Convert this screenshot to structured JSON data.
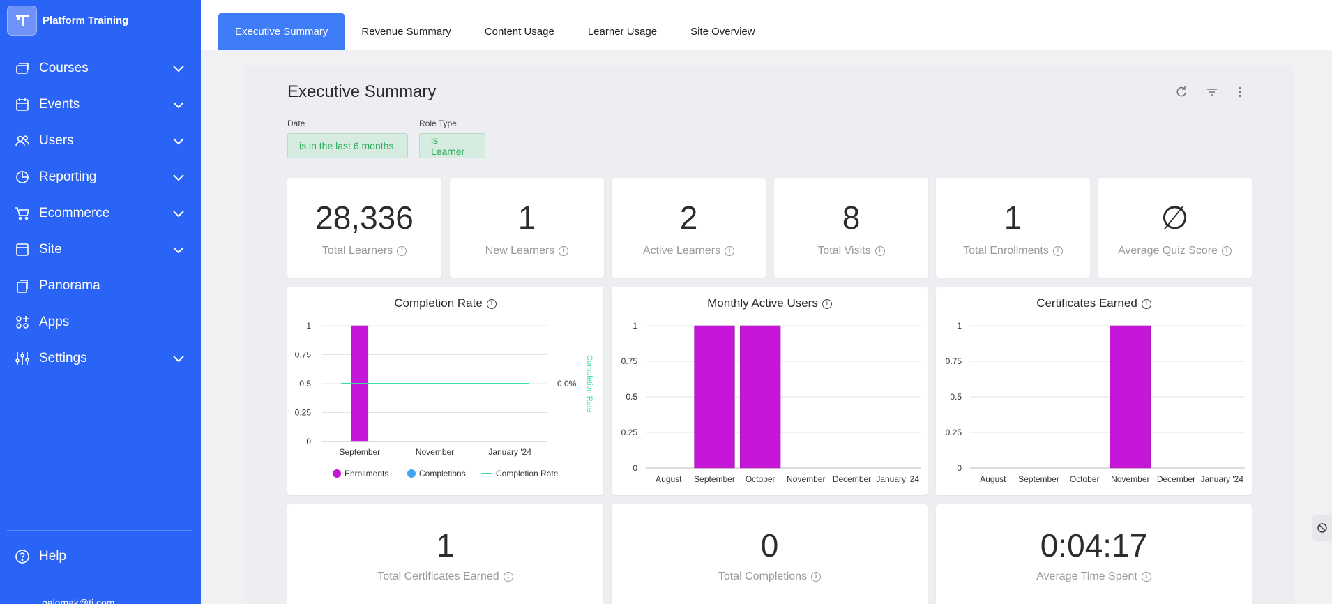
{
  "brand": {
    "name": "Platform Training"
  },
  "nav": [
    {
      "label": "Courses",
      "icon": "courses-icon",
      "chevron": true
    },
    {
      "label": "Events",
      "icon": "calendar-icon",
      "chevron": true
    },
    {
      "label": "Users",
      "icon": "users-icon",
      "chevron": true
    },
    {
      "label": "Reporting",
      "icon": "pie-chart-icon",
      "chevron": true
    },
    {
      "label": "Ecommerce",
      "icon": "cart-icon",
      "chevron": true
    },
    {
      "label": "Site",
      "icon": "browser-icon",
      "chevron": true
    },
    {
      "label": "Panorama",
      "icon": "panorama-icon",
      "chevron": false
    },
    {
      "label": "Apps",
      "icon": "apps-icon",
      "chevron": false
    },
    {
      "label": "Settings",
      "icon": "sliders-icon",
      "chevron": true
    }
  ],
  "help": {
    "label": "Help"
  },
  "user": {
    "email": "palomak@ti.com"
  },
  "tabs": [
    "Executive Summary",
    "Revenue Summary",
    "Content Usage",
    "Learner Usage",
    "Site Overview"
  ],
  "dashboard": {
    "title": "Executive Summary"
  },
  "filters": [
    {
      "label": "Date",
      "value": "is in the last 6 months"
    },
    {
      "label": "Role Type",
      "value": "is Learner"
    }
  ],
  "kpis": [
    {
      "value": "28,336",
      "label": "Total Learners"
    },
    {
      "value": "1",
      "label": "New Learners"
    },
    {
      "value": "2",
      "label": "Active Learners"
    },
    {
      "value": "8",
      "label": "Total Visits"
    },
    {
      "value": "1",
      "label": "Total Enrollments"
    },
    {
      "value": "∅",
      "label": "Average Quiz Score"
    }
  ],
  "kpis_bottom": [
    {
      "value": "1",
      "label": "Total Certificates Earned"
    },
    {
      "value": "0",
      "label": "Total Completions"
    },
    {
      "value": "0:04:17",
      "label": "Average Time Spent"
    }
  ],
  "colors": {
    "sidebar": "#2a64f6",
    "accent": "#3f7cf7",
    "bar": "#c617d8",
    "line": "#3ddca5",
    "completions": "#3ea5f5",
    "pill_text": "#2bad5c"
  },
  "chart_data": [
    {
      "type": "bar",
      "title": "Completion Rate",
      "categories": [
        "September",
        "November",
        "January '24"
      ],
      "series": [
        {
          "name": "Enrollments",
          "values": [
            1,
            0,
            0
          ]
        },
        {
          "name": "Completions",
          "values": [
            0,
            0,
            0
          ]
        },
        {
          "name": "Completion Rate",
          "values": [
            0.0,
            0.0,
            0.0
          ]
        }
      ],
      "yticks": [
        "0",
        "0.25",
        "0.5",
        "0.75",
        "1"
      ],
      "ylim": [
        0,
        1
      ],
      "y2label": "Completion Rate",
      "y2tick": "0.0%",
      "legend": "bottom"
    },
    {
      "type": "bar",
      "title": "Monthly Active Users",
      "categories": [
        "August",
        "September",
        "October",
        "November",
        "December",
        "January '24"
      ],
      "values": [
        0,
        1,
        1,
        0,
        0,
        0
      ],
      "yticks": [
        "0",
        "0.25",
        "0.5",
        "0.75",
        "1"
      ],
      "ylim": [
        0,
        1
      ]
    },
    {
      "type": "bar",
      "title": "Certificates Earned",
      "categories": [
        "August",
        "September",
        "October",
        "November",
        "December",
        "January '24"
      ],
      "values": [
        0,
        0,
        0,
        1,
        0,
        0
      ],
      "yticks": [
        "0",
        "0.25",
        "0.5",
        "0.75",
        "1"
      ],
      "ylim": [
        0,
        1
      ]
    }
  ]
}
